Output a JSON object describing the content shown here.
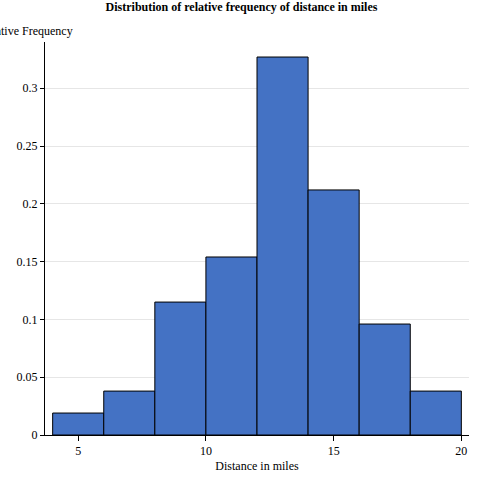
{
  "chart_data": {
    "type": "histogram",
    "title": "Distribution of relative frequency of distance in miles",
    "x_label": "Distance in miles",
    "y_label": "Relative Frequency",
    "bins": [
      4,
      6,
      8,
      10,
      12,
      14,
      16,
      18,
      20
    ],
    "values": [
      0.019,
      0.038,
      0.115,
      0.154,
      0.327,
      0.212,
      0.096,
      0.038
    ],
    "color": "#4472c4",
    "xlim": [
      3.7,
      20.3
    ],
    "xticks": [
      5,
      10,
      15,
      20
    ],
    "ylim": [
      0,
      0.34
    ],
    "yticks": [
      0,
      0.05,
      0.1,
      0.15,
      0.2,
      0.25,
      0.3
    ],
    "grid": true
  }
}
